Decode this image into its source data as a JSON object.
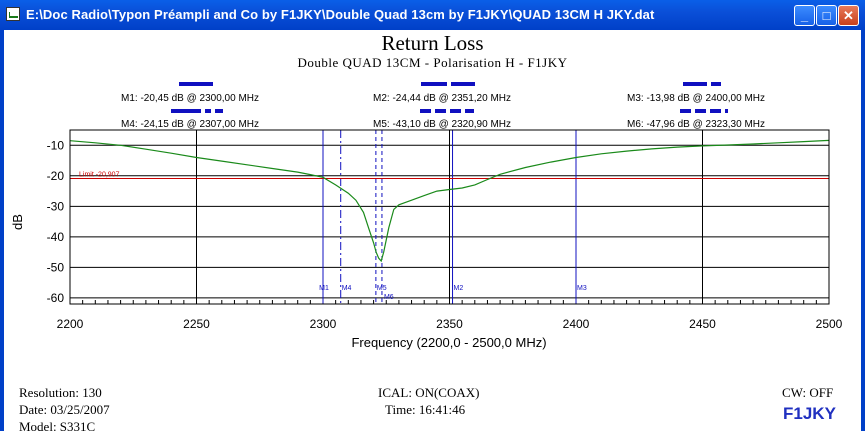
{
  "window": {
    "title": "E:\\Doc Radio\\Typon Préampli and Co by F1JKY\\Double Quad 13cm by F1JKY\\QUAD 13CM H JKY.dat",
    "minimize_label": "_",
    "maximize_label": "□",
    "close_label": "✕"
  },
  "markers": {
    "M1": "M1: -20,45 dB @ 2300,00 MHz",
    "M2": "M2: -24,44 dB @ 2351,20 MHz",
    "M3": "M3: -13,98 dB @ 2400,00 MHz",
    "M4": "M4: -24,15 dB @ 2307,00 MHz",
    "M5": "M5: -43,10 dB @ 2320,90 MHz",
    "M6": "M6: -47,96 dB @ 2323,30 MHz"
  },
  "footer": {
    "resolution": "Resolution:  130",
    "date": "Date: 03/25/2007",
    "model": "Model: S331C",
    "ical": "ICAL: ON(COAX)",
    "time": "Time: 16:41:46",
    "cw": "CW: OFF",
    "brand": "F1JKY"
  },
  "colors": {
    "trace": "#1a8a1a",
    "limit": "#cc0000",
    "marker": "#1010c0",
    "grid": "#000000"
  },
  "chart_data": {
    "type": "line",
    "title": "Return Loss",
    "subtitle": "Double QUAD 13CM - Polarisation H  - F1JKY",
    "xlabel": "Frequency (2200,0 - 2500,0 MHz)",
    "ylabel": "dB",
    "xlim": [
      2200,
      2500
    ],
    "ylim": [
      -62,
      -5
    ],
    "xticks": [
      2200,
      2250,
      2300,
      2350,
      2400,
      2450,
      2500
    ],
    "yticks": [
      -10,
      -20,
      -30,
      -40,
      -50,
      -60
    ],
    "limit": {
      "label": "Limit -20,907",
      "value": -20.907
    },
    "markers": [
      {
        "name": "M1",
        "x": 2300.0,
        "style": "solid"
      },
      {
        "name": "M4",
        "x": 2307.0,
        "style": "dashdot"
      },
      {
        "name": "M5",
        "x": 2320.9,
        "style": "dashed"
      },
      {
        "name": "M6",
        "x": 2323.3,
        "style": "dashed"
      },
      {
        "name": "M2",
        "x": 2351.2,
        "style": "solid"
      },
      {
        "name": "M3",
        "x": 2400.0,
        "style": "solid"
      }
    ],
    "series": [
      {
        "x": [
          2200,
          2210,
          2220,
          2230,
          2240,
          2250,
          2260,
          2270,
          2280,
          2290,
          2295,
          2300,
          2305,
          2310,
          2313,
          2316,
          2318,
          2320,
          2321,
          2322,
          2323,
          2324,
          2326,
          2328,
          2330,
          2335,
          2340,
          2345,
          2350,
          2355,
          2360,
          2365,
          2370,
          2380,
          2390,
          2400,
          2410,
          2420,
          2430,
          2440,
          2450,
          2460,
          2470,
          2480,
          2490,
          2500
        ],
        "y": [
          -8.5,
          -9.2,
          -10,
          -11.3,
          -12.6,
          -14,
          -15.2,
          -16.4,
          -17.6,
          -18.8,
          -19.6,
          -20.5,
          -23,
          -25.7,
          -28,
          -32,
          -37,
          -42,
          -45,
          -47,
          -47.9,
          -45,
          -37,
          -31,
          -29.5,
          -28,
          -26.5,
          -25,
          -24.5,
          -24,
          -23,
          -21.2,
          -19.5,
          -17.3,
          -15.5,
          -14,
          -12.8,
          -11.9,
          -11.2,
          -10.6,
          -10.2,
          -9.9,
          -9.6,
          -9.2,
          -8.8,
          -8.4
        ]
      }
    ]
  }
}
